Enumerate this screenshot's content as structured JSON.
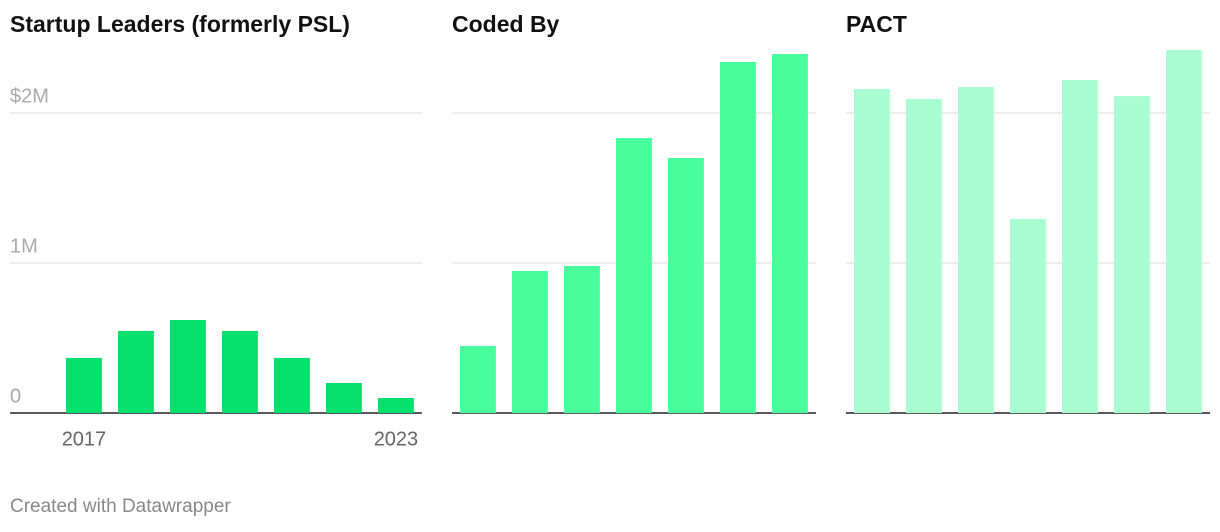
{
  "chart_data": [
    {
      "type": "bar",
      "title": "Startup Leaders (formerly PSL)",
      "color": "#05df6e",
      "categories": [
        "2017",
        null,
        null,
        null,
        null,
        null,
        "2023"
      ],
      "values": [
        367000,
        547000,
        620000,
        547000,
        367000,
        200000,
        100000
      ],
      "ylim": [
        0,
        2500000
      ],
      "yticks": [
        0,
        {
          "value": 1000000,
          "label": "1M"
        },
        {
          "value": 2000000,
          "label": "$2M"
        }
      ],
      "grid": true
    },
    {
      "type": "bar",
      "title": "Coded By",
      "color": "#48fd9b",
      "values": [
        447000,
        947000,
        980000,
        1833000,
        1700000,
        2340000,
        2393000
      ],
      "ylim": [
        0,
        2500000
      ],
      "yticks": [
        0,
        1000000,
        2000000
      ],
      "grid": true
    },
    {
      "type": "bar",
      "title": "PACT",
      "color": "#a9fed1",
      "values": [
        2160000,
        2093000,
        2173000,
        1293000,
        2220000,
        2113000,
        2420000
      ],
      "ylim": [
        0,
        2500000
      ],
      "yticks": [
        0,
        1000000,
        2000000
      ],
      "grid": true
    }
  ],
  "footer": "Created with Datawrapper"
}
